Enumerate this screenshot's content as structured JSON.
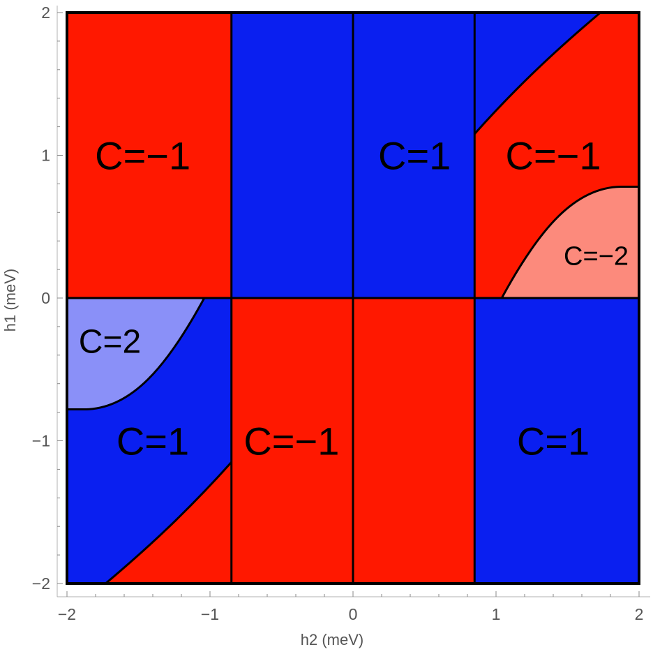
{
  "chart_data": {
    "type": "heatmap",
    "xlabel": "h2 (meV)",
    "ylabel": "h1 (meV)",
    "xlim": [
      -2,
      2
    ],
    "ylim": [
      -2,
      2
    ],
    "xticks": [
      -2,
      -1,
      0,
      1,
      2
    ],
    "yticks": [
      -2,
      -1,
      0,
      1,
      2
    ],
    "xtick_labels": [
      "−2",
      "−1",
      "0",
      "1",
      "2"
    ],
    "ytick_labels": [
      "−2",
      "−1",
      "0",
      "1",
      "2"
    ],
    "vertical_boundaries": [
      -0.85,
      0,
      0.85
    ],
    "horizontal_boundaries": [
      0
    ],
    "colors": {
      "C=1": "#0a1ff0",
      "C=-1": "#ff1800",
      "C=2": "#8a90f8",
      "C=-2": "#fc8a7c"
    },
    "regions": [
      {
        "chern": -1,
        "label": "C=−1",
        "h2_range": [
          -2,
          -0.85
        ],
        "h1_range": [
          0,
          2
        ],
        "label_at": [
          -1.47,
          1.0
        ]
      },
      {
        "chern": 1,
        "label": "",
        "h2_range": [
          -0.85,
          0
        ],
        "h1_range": [
          0,
          2
        ]
      },
      {
        "chern": 1,
        "label": "C=1",
        "h2_range": [
          0,
          0.85
        ],
        "h1_range": [
          0,
          2
        ],
        "label_at": [
          0.43,
          1.0
        ]
      },
      {
        "chern": -1,
        "label": "C=−1",
        "h2_range": [
          0.85,
          2
        ],
        "h1_range": [
          0,
          2
        ],
        "label_at": [
          1.4,
          1.0
        ]
      },
      {
        "chern": -2,
        "label": "C=−2",
        "h2_range": [
          1.04,
          2
        ],
        "h1_range": [
          0,
          0.78
        ],
        "label_at": [
          1.7,
          0.3
        ]
      },
      {
        "chern": 1,
        "label": "",
        "h2_range": [
          0.85,
          1.73
        ],
        "h1_range": [
          1.15,
          2
        ]
      },
      {
        "chern": 2,
        "label": "C=2",
        "h2_range": [
          -2,
          -1.04
        ],
        "h1_range": [
          -0.78,
          0
        ],
        "label_at": [
          -1.7,
          -0.3
        ]
      },
      {
        "chern": 1,
        "label": "C=1",
        "h2_range": [
          -2,
          -0.85
        ],
        "h1_range": [
          -2,
          0
        ],
        "label_at": [
          -1.4,
          -1.0
        ]
      },
      {
        "chern": -1,
        "label": "",
        "h2_range": [
          -1.73,
          -0.85
        ],
        "h1_range": [
          -2,
          -1.15
        ]
      },
      {
        "chern": -1,
        "label": "C=−1",
        "h2_range": [
          -0.85,
          0
        ],
        "h1_range": [
          -2,
          0
        ],
        "label_at": [
          -0.43,
          -1.0
        ]
      },
      {
        "chern": -1,
        "label": "",
        "h2_range": [
          0,
          0.85
        ],
        "h1_range": [
          -2,
          0
        ]
      },
      {
        "chern": 1,
        "label": "C=1",
        "h2_range": [
          0.85,
          2
        ],
        "h1_range": [
          -2,
          0
        ],
        "label_at": [
          1.4,
          -1.0
        ]
      }
    ]
  }
}
